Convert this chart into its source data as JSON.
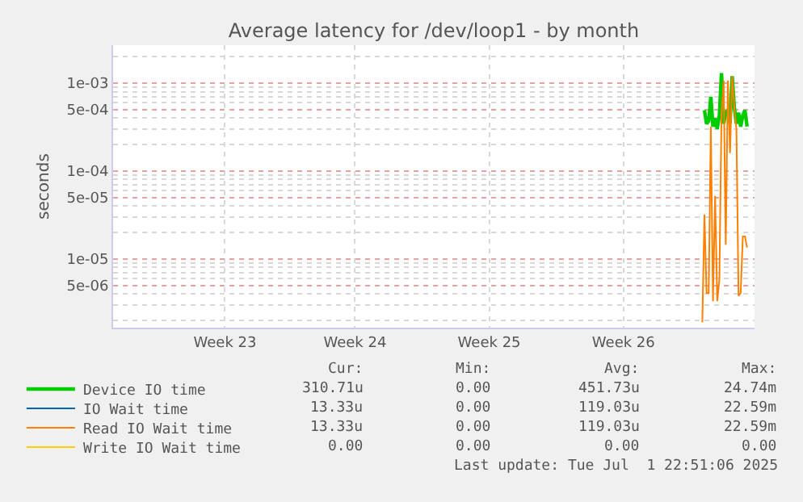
{
  "chart_data": {
    "type": "line",
    "title": "Average latency for /dev/loop1 - by month",
    "ylabel": "seconds",
    "log": "y",
    "grid": true,
    "legend": "bottom left",
    "marker": "none",
    "line_style": "solid",
    "categories": [
      null,
      null,
      null,
      null,
      null,
      null,
      null,
      null,
      null,
      null,
      null,
      null,
      null,
      null,
      null,
      null,
      null,
      null,
      null,
      null,
      null,
      null,
      null,
      null,
      null,
      null,
      null,
      null,
      null,
      null,
      null,
      null,
      null,
      null,
      null,
      null,
      null,
      null,
      null,
      null,
      null,
      null,
      null,
      null,
      null,
      null,
      null,
      null,
      null,
      null,
      null,
      null,
      "Week 23",
      null,
      null,
      null,
      null,
      null,
      null,
      null,
      null,
      null,
      null,
      null,
      null,
      null,
      null,
      null,
      null,
      null,
      null,
      null,
      null,
      null,
      null,
      null,
      null,
      null,
      null,
      null,
      null,
      null,
      null,
      null,
      null,
      null,
      null,
      null,
      null,
      null,
      null,
      null,
      null,
      null,
      null,
      null,
      null,
      null,
      null,
      null,
      null,
      null,
      null,
      null,
      null,
      null,
      null,
      null,
      null,
      null,
      null,
      null,
      null,
      "Week 24",
      null,
      null,
      null,
      null,
      null,
      null,
      null,
      null,
      null,
      null,
      null,
      null,
      null,
      null,
      null,
      null,
      null,
      null,
      null,
      null,
      null,
      null,
      null,
      null,
      null,
      null,
      null,
      null,
      null,
      null,
      null,
      null,
      null,
      null,
      null,
      null,
      null,
      null,
      null,
      null,
      null,
      null,
      null,
      null,
      null,
      null,
      null,
      null,
      null,
      null,
      null,
      null,
      null,
      null,
      null,
      null,
      null,
      null,
      null,
      null,
      null,
      null,
      "Week 25",
      null,
      null,
      null,
      null,
      null,
      null,
      null,
      null,
      null,
      null,
      null,
      null,
      null,
      null,
      null,
      null,
      null,
      null,
      null,
      null,
      null,
      null,
      null,
      null,
      null,
      null,
      null,
      null,
      null,
      null,
      null,
      null,
      null,
      null,
      null,
      null,
      null,
      null,
      null,
      null,
      null,
      null,
      null,
      null,
      null,
      null,
      null,
      null,
      null,
      null,
      null,
      null,
      null,
      null,
      null,
      null,
      null,
      null,
      null,
      null,
      null,
      null,
      "Week 26",
      null,
      null,
      null,
      null,
      null,
      null,
      null,
      null,
      null,
      null,
      null,
      null,
      null,
      null,
      null,
      null,
      null,
      null,
      null,
      null,
      null,
      null,
      null,
      null,
      null,
      null,
      null,
      null,
      null,
      null,
      null,
      null,
      null,
      null,
      null,
      null,
      null,
      null,
      null,
      null,
      null,
      null,
      null,
      null,
      null,
      null,
      null,
      null,
      null,
      null,
      null,
      null,
      null,
      null,
      null,
      null,
      null,
      null,
      null,
      null,
      null
    ],
    "ylim": [
      1.65e-06,
      0.0027
    ],
    "yticks": [
      {
        "value": 0.001,
        "label": "1e-03"
      },
      {
        "value": 0.0005,
        "label": "5e-04"
      },
      {
        "value": 0.0001,
        "label": "1e-04"
      },
      {
        "value": 5e-05,
        "label": "5e-05"
      },
      {
        "value": 1e-05,
        "label": "1e-05"
      },
      {
        "value": 5e-06,
        "label": "5e-06"
      }
    ],
    "series": [
      {
        "name": "Device IO time",
        "color": "#00cc00",
        "values": [
          null,
          null,
          null,
          null,
          null,
          null,
          null,
          null,
          null,
          null,
          null,
          null,
          null,
          null,
          null,
          null,
          null,
          null,
          null,
          null,
          null,
          null,
          null,
          null,
          null,
          null,
          null,
          null,
          null,
          null,
          null,
          null,
          null,
          null,
          null,
          null,
          null,
          null,
          null,
          null,
          null,
          null,
          null,
          null,
          null,
          null,
          null,
          null,
          null,
          null,
          null,
          null,
          null,
          null,
          null,
          null,
          null,
          null,
          null,
          null,
          null,
          null,
          null,
          null,
          null,
          null,
          null,
          null,
          null,
          null,
          null,
          null,
          null,
          null,
          null,
          null,
          null,
          null,
          null,
          null,
          null,
          null,
          null,
          null,
          null,
          null,
          null,
          null,
          null,
          null,
          null,
          null,
          null,
          null,
          null,
          null,
          null,
          null,
          null,
          null,
          null,
          null,
          null,
          null,
          null,
          null,
          null,
          null,
          null,
          null,
          null,
          null,
          null,
          null,
          null,
          null,
          null,
          null,
          null,
          null,
          null,
          null,
          null,
          null,
          null,
          null,
          null,
          null,
          null,
          null,
          null,
          null,
          null,
          null,
          null,
          null,
          null,
          null,
          null,
          null,
          null,
          null,
          null,
          null,
          null,
          null,
          null,
          null,
          null,
          null,
          null,
          null,
          null,
          null,
          null,
          null,
          null,
          null,
          null,
          null,
          null,
          null,
          null,
          null,
          null,
          null,
          null,
          null,
          null,
          null,
          null,
          null,
          null,
          null,
          null,
          null,
          null,
          null,
          null,
          null,
          null,
          null,
          null,
          null,
          null,
          null,
          null,
          null,
          null,
          null,
          null,
          null,
          null,
          null,
          null,
          null,
          null,
          null,
          null,
          null,
          null,
          null,
          null,
          null,
          null,
          null,
          null,
          null,
          null,
          null,
          null,
          null,
          null,
          null,
          null,
          null,
          null,
          null,
          null,
          null,
          null,
          null,
          null,
          null,
          null,
          null,
          null,
          null,
          null,
          null,
          null,
          null,
          null,
          null,
          null,
          null,
          null,
          null,
          null,
          null,
          null,
          null,
          null,
          null,
          null,
          null,
          null,
          null,
          null,
          null,
          null,
          null,
          null,
          null,
          null,
          null,
          null,
          null,
          null,
          null,
          null,
          null,
          null,
          null,
          null,
          null,
          null,
          null,
          null,
          null,
          null,
          null,
          null,
          null,
          null,
          null,
          null,
          0.00049,
          0.000345,
          0.00037,
          0.0007,
          0.00032,
          0.0004,
          0.0003,
          0.00043,
          0.0013,
          0.000345,
          0.00046,
          0.00049,
          0.000345,
          0.0012,
          0.00053,
          0.000345,
          0.00046,
          0.00032,
          0.00043,
          0.00049,
          0.00032,
          null,
          null,
          null
        ]
      },
      {
        "name": "IO Wait time",
        "color": "#0066b3",
        "values": [
          null,
          null,
          null,
          null,
          null,
          null,
          null,
          null,
          null,
          null,
          null,
          null,
          null,
          null,
          null,
          null,
          null,
          null,
          null,
          null,
          null,
          null,
          null,
          null,
          null,
          null,
          null,
          null,
          null,
          null,
          null,
          null,
          null,
          null,
          null,
          null,
          null,
          null,
          null,
          null,
          null,
          null,
          null,
          null,
          null,
          null,
          null,
          null,
          null,
          null,
          null,
          null,
          null,
          null,
          null,
          null,
          null,
          null,
          null,
          null,
          null,
          null,
          null,
          null,
          null,
          null,
          null,
          null,
          null,
          null,
          null,
          null,
          null,
          null,
          null,
          null,
          null,
          null,
          null,
          null,
          null,
          null,
          null,
          null,
          null,
          null,
          null,
          null,
          null,
          null,
          null,
          null,
          null,
          null,
          null,
          null,
          null,
          null,
          null,
          null,
          null,
          null,
          null,
          null,
          null,
          null,
          null,
          null,
          null,
          null,
          null,
          null,
          null,
          null,
          null,
          null,
          null,
          null,
          null,
          null,
          null,
          null,
          null,
          null,
          null,
          null,
          null,
          null,
          null,
          null,
          null,
          null,
          null,
          null,
          null,
          null,
          null,
          null,
          null,
          null,
          null,
          null,
          null,
          null,
          null,
          null,
          null,
          null,
          null,
          null,
          null,
          null,
          null,
          null,
          null,
          null,
          null,
          null,
          null,
          null,
          null,
          null,
          null,
          null,
          null,
          null,
          null,
          null,
          null,
          null,
          null,
          null,
          null,
          null,
          null,
          null,
          null,
          null,
          null,
          null,
          null,
          null,
          null,
          null,
          null,
          null,
          null,
          null,
          null,
          null,
          null,
          null,
          null,
          null,
          null,
          null,
          null,
          null,
          null,
          null,
          null,
          null,
          null,
          null,
          null,
          null,
          null,
          null,
          null,
          null,
          null,
          null,
          null,
          null,
          null,
          null,
          null,
          null,
          null,
          null,
          null,
          null,
          null,
          null,
          null,
          null,
          null,
          null,
          null,
          null,
          null,
          null,
          null,
          null,
          null,
          null,
          null,
          null,
          null,
          null,
          null,
          null,
          null,
          null,
          null,
          null,
          null,
          null,
          null,
          null,
          null,
          null,
          null,
          null,
          null,
          null,
          null,
          null,
          null,
          null,
          null,
          null,
          null,
          null,
          null,
          null,
          null,
          null,
          null,
          null,
          null,
          null,
          null,
          null,
          null,
          null,
          null,
          null,
          null,
          null,
          null,
          null,
          null,
          null,
          null,
          null,
          null,
          null,
          null,
          null,
          null,
          null,
          null,
          null,
          null,
          null,
          null,
          null,
          null,
          null,
          null
        ]
      },
      {
        "name": "Read IO Wait time",
        "color": "#ff8000",
        "values": [
          null,
          null,
          null,
          null,
          null,
          null,
          null,
          null,
          null,
          null,
          null,
          null,
          null,
          null,
          null,
          null,
          null,
          null,
          null,
          null,
          null,
          null,
          null,
          null,
          null,
          null,
          null,
          null,
          null,
          null,
          null,
          null,
          null,
          null,
          null,
          null,
          null,
          null,
          null,
          null,
          null,
          null,
          null,
          null,
          null,
          null,
          null,
          null,
          null,
          null,
          null,
          null,
          null,
          null,
          null,
          null,
          null,
          null,
          null,
          null,
          null,
          null,
          null,
          null,
          null,
          null,
          null,
          null,
          null,
          null,
          null,
          null,
          null,
          null,
          null,
          null,
          null,
          null,
          null,
          null,
          null,
          null,
          null,
          null,
          null,
          null,
          null,
          null,
          null,
          null,
          null,
          null,
          null,
          null,
          null,
          null,
          null,
          null,
          null,
          null,
          null,
          null,
          null,
          null,
          null,
          null,
          null,
          null,
          null,
          null,
          null,
          null,
          null,
          null,
          null,
          null,
          null,
          null,
          null,
          null,
          null,
          null,
          null,
          null,
          null,
          null,
          null,
          null,
          null,
          null,
          null,
          null,
          null,
          null,
          null,
          null,
          null,
          null,
          null,
          null,
          null,
          null,
          null,
          null,
          null,
          null,
          null,
          null,
          null,
          null,
          null,
          null,
          null,
          null,
          null,
          null,
          null,
          null,
          null,
          null,
          null,
          null,
          null,
          null,
          null,
          null,
          null,
          null,
          null,
          null,
          null,
          null,
          null,
          null,
          null,
          null,
          null,
          null,
          null,
          null,
          null,
          null,
          null,
          null,
          null,
          null,
          null,
          null,
          null,
          null,
          null,
          null,
          null,
          null,
          null,
          null,
          null,
          null,
          null,
          null,
          null,
          null,
          null,
          null,
          null,
          null,
          null,
          null,
          null,
          null,
          null,
          null,
          null,
          null,
          null,
          null,
          null,
          null,
          null,
          null,
          null,
          null,
          null,
          null,
          null,
          null,
          null,
          null,
          null,
          null,
          null,
          null,
          null,
          null,
          null,
          null,
          null,
          null,
          null,
          null,
          null,
          null,
          null,
          null,
          null,
          null,
          null,
          null,
          null,
          null,
          null,
          null,
          null,
          null,
          null,
          null,
          null,
          null,
          null,
          null,
          null,
          null,
          null,
          null,
          null,
          null,
          null,
          null,
          null,
          null,
          null,
          null,
          null,
          null,
          null,
          null,
          1.9e-06,
          3.2e-05,
          4.1e-06,
          4.1e-06,
          0.00032,
          3.3e-06,
          5.2e-05,
          3.3e-06,
          5.8e-06,
          0.00043,
          0.00107,
          1.45e-05,
          0.00107,
          0.00016,
          0.0012,
          0.00053,
          0.0003,
          3.8e-06,
          4.1e-06,
          1.8e-05,
          1.8e-05,
          1.35e-05,
          null,
          null,
          null
        ]
      },
      {
        "name": "Write IO Wait time",
        "color": "#ffcc00",
        "values": [
          null,
          null,
          null,
          null,
          null,
          null,
          null,
          null,
          null,
          null,
          null,
          null,
          null,
          null,
          null,
          null,
          null,
          null,
          null,
          null,
          null,
          null,
          null,
          null,
          null,
          null,
          null,
          null,
          null,
          null,
          null,
          null,
          null,
          null,
          null,
          null,
          null,
          null,
          null,
          null,
          null,
          null,
          null,
          null,
          null,
          null,
          null,
          null,
          null,
          null,
          null,
          null,
          null,
          null,
          null,
          null,
          null,
          null,
          null,
          null,
          null,
          null,
          null,
          null,
          null,
          null,
          null,
          null,
          null,
          null,
          null,
          null,
          null,
          null,
          null,
          null,
          null,
          null,
          null,
          null,
          null,
          null,
          null,
          null,
          null,
          null,
          null,
          null,
          null,
          null,
          null,
          null,
          null,
          null,
          null,
          null,
          null,
          null,
          null,
          null,
          null,
          null,
          null,
          null,
          null,
          null,
          null,
          null,
          null,
          null,
          null,
          null,
          null,
          null,
          null,
          null,
          null,
          null,
          null,
          null,
          null,
          null,
          null,
          null,
          null,
          null,
          null,
          null,
          null,
          null,
          null,
          null,
          null,
          null,
          null,
          null,
          null,
          null,
          null,
          null,
          null,
          null,
          null,
          null,
          null,
          null,
          null,
          null,
          null,
          null,
          null,
          null,
          null,
          null,
          null,
          null,
          null,
          null,
          null,
          null,
          null,
          null,
          null,
          null,
          null,
          null,
          null,
          null,
          null,
          null,
          null,
          null,
          null,
          null,
          null,
          null,
          null,
          null,
          null,
          null,
          null,
          null,
          null,
          null,
          null,
          null,
          null,
          null,
          null,
          null,
          null,
          null,
          null,
          null,
          null,
          null,
          null,
          null,
          null,
          null,
          null,
          null,
          null,
          null,
          null,
          null,
          null,
          null,
          null,
          null,
          null,
          null,
          null,
          null,
          null,
          null,
          null,
          null,
          null,
          null,
          null,
          null,
          null,
          null,
          null,
          null,
          null,
          null,
          null,
          null,
          null,
          null,
          null,
          null,
          null,
          null,
          null,
          null,
          null,
          null,
          null,
          null,
          null,
          null,
          null,
          null,
          null,
          null,
          null,
          null,
          null,
          null,
          null,
          null,
          null,
          null,
          null,
          null,
          null,
          null,
          null,
          null,
          null,
          null,
          null,
          null,
          null,
          null,
          null,
          null,
          null,
          null,
          null,
          null,
          null,
          null,
          null,
          null,
          null,
          null,
          null,
          null,
          null,
          null,
          null,
          null,
          null,
          null,
          null,
          null,
          null,
          null,
          null,
          null,
          null,
          null,
          null,
          null,
          null,
          null,
          null
        ]
      }
    ],
    "annotations": [
      "Cur:",
      "Min:",
      "Avg:",
      "Max:",
      "310.71u",
      "0.00",
      "451.73u",
      "24.74m",
      "13.33u",
      "0.00",
      "119.03u",
      "22.59m",
      "13.33u",
      "0.00",
      "119.03u",
      "22.59m",
      "0.00",
      "0.00",
      "0.00",
      "0.00",
      "Last update: Tue Jul  1 22:51:06 2025"
    ]
  }
}
